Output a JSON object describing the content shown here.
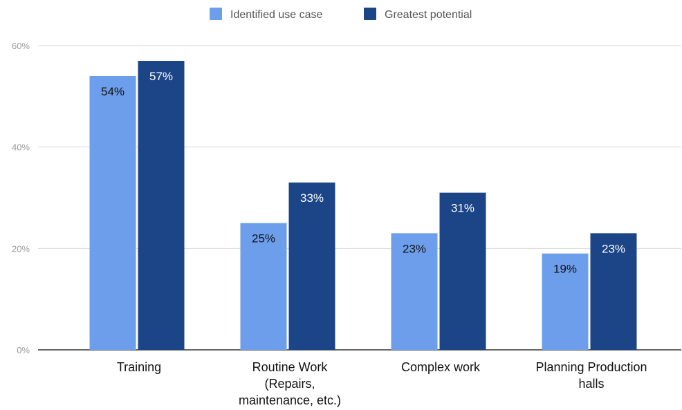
{
  "chart_data": {
    "type": "bar",
    "categories": [
      [
        "Training"
      ],
      [
        "Routine Work",
        "(Repairs,",
        "maintenance, etc.)"
      ],
      [
        "Complex work"
      ],
      [
        "Planning Production",
        "halls"
      ]
    ],
    "series": [
      {
        "name": "Identified use case",
        "color": "#6d9eeb",
        "label_color": "#111111",
        "values": [
          54,
          25,
          23,
          19
        ],
        "labels": [
          "54%",
          "25%",
          "23%",
          "19%"
        ]
      },
      {
        "name": "Greatest potential",
        "color": "#1c4587",
        "label_color": "#ffffff",
        "values": [
          57,
          33,
          31,
          23
        ],
        "labels": [
          "57%",
          "33%",
          "31%",
          "23%"
        ]
      }
    ],
    "yticks": [
      {
        "value": 0,
        "label": "0%"
      },
      {
        "value": 20,
        "label": "20%"
      },
      {
        "value": 40,
        "label": "40%"
      },
      {
        "value": 60,
        "label": "60%"
      }
    ],
    "ylim": [
      0,
      60
    ],
    "title": "",
    "xlabel": "",
    "ylabel": "",
    "grid": true,
    "legend_position": "top"
  }
}
